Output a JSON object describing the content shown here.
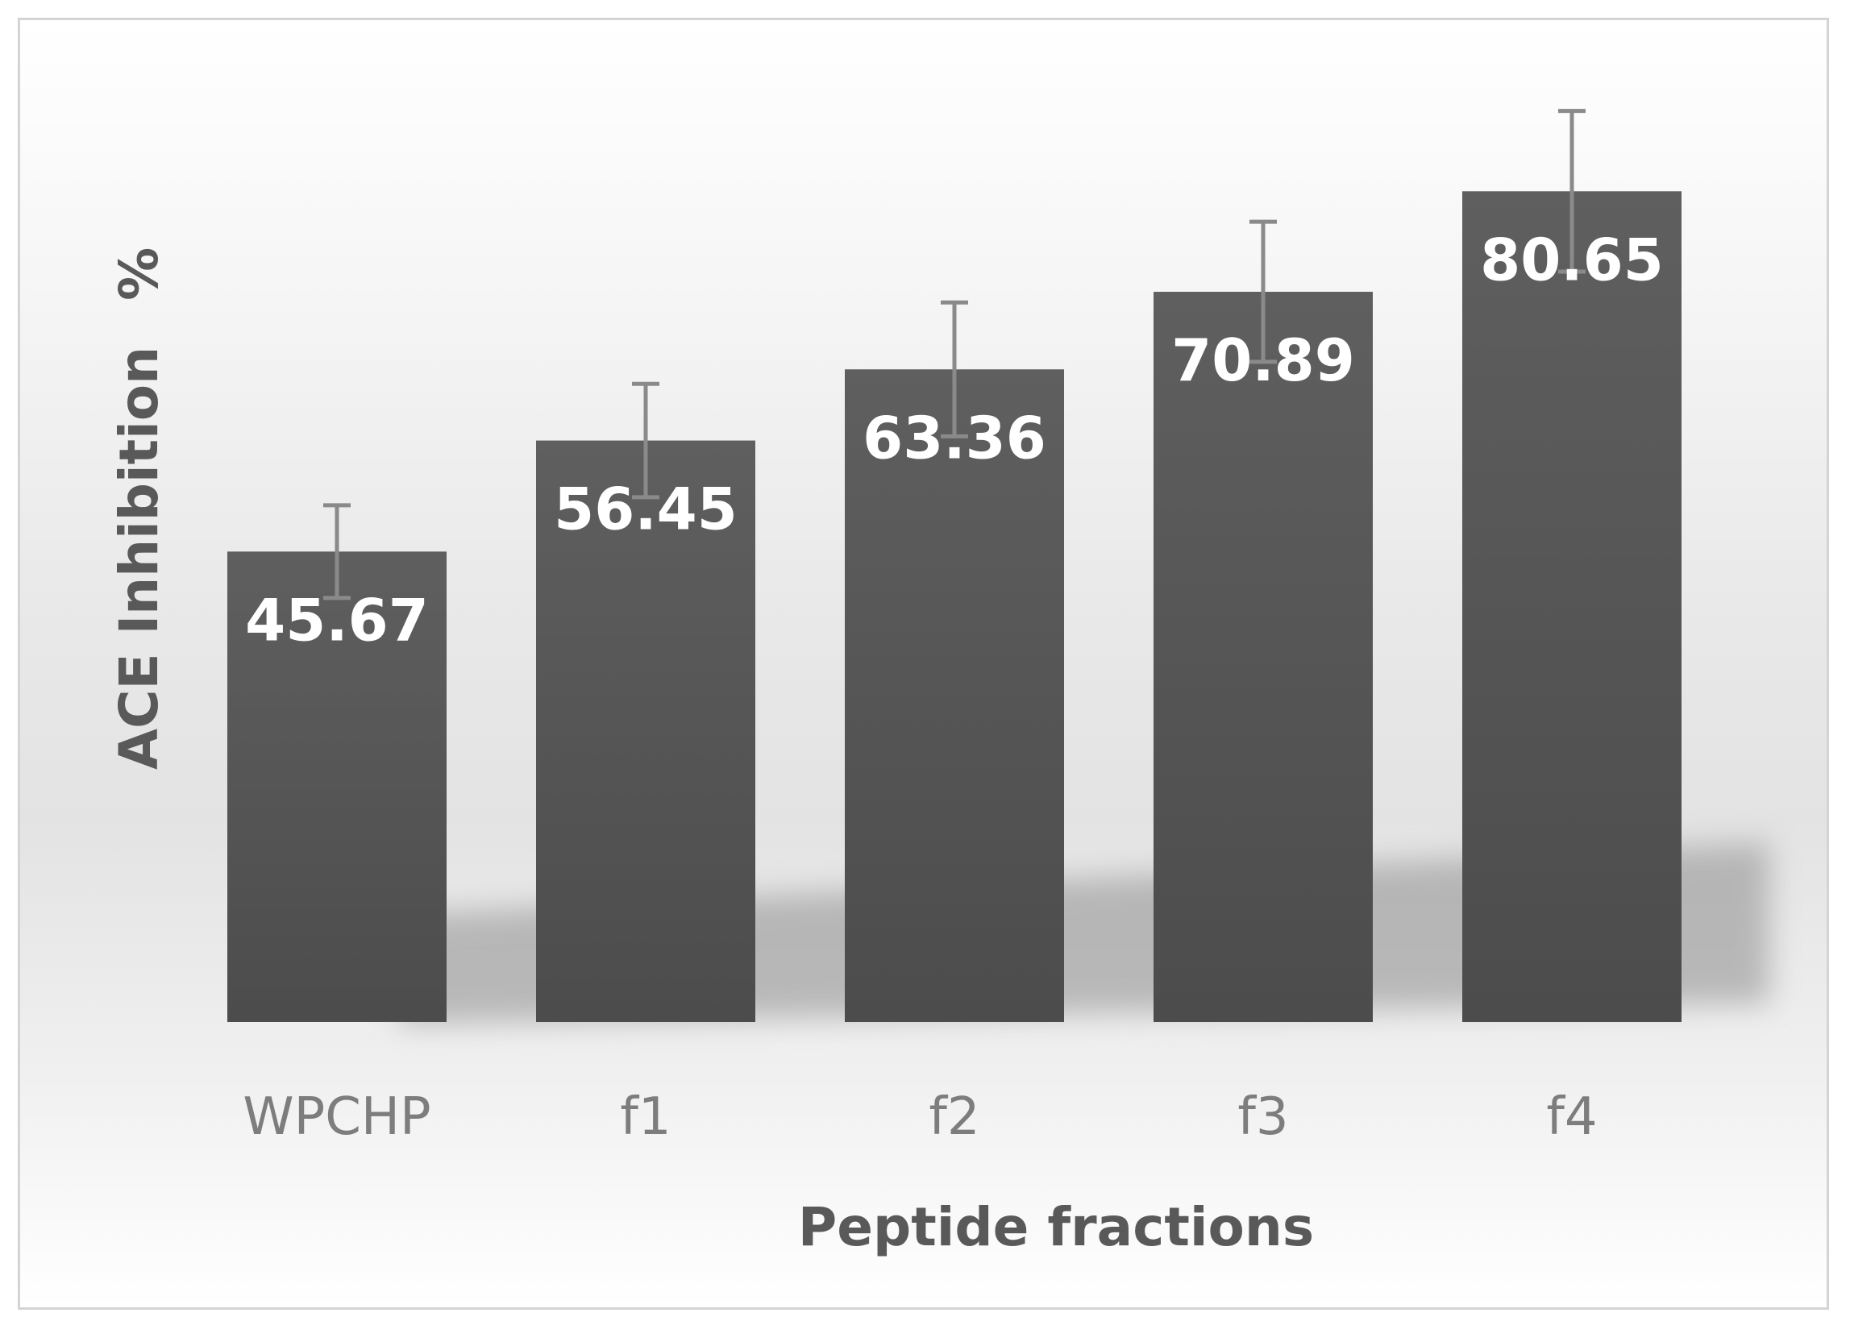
{
  "chart_data": {
    "type": "bar",
    "categories": [
      "WPCHP",
      "f1",
      "f2",
      "f3",
      "f4"
    ],
    "values": [
      45.67,
      56.45,
      63.36,
      70.89,
      80.65
    ],
    "error_bars": [
      4.5,
      5.5,
      6.5,
      6.8,
      7.8
    ],
    "data_labels": [
      "45.67",
      "56.45",
      "63.36",
      "70.89",
      "80.65"
    ],
    "xlabel": "Peptide fractions",
    "ylabel": "ACE Inhibition",
    "ylabel_unit": "%",
    "ylim": [
      0,
      100
    ],
    "grid": false,
    "legend": "none",
    "colors": {
      "bar": "#555555",
      "error_bar": "#8a8a8a",
      "data_label": "#ffffff",
      "category_label": "#7d7d7d",
      "axis_title": "#595959"
    }
  }
}
